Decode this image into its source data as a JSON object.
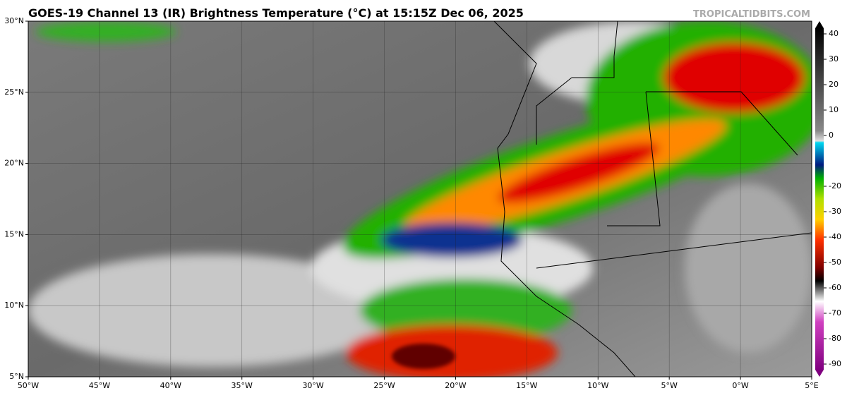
{
  "title": "GOES-19 Channel 13 (IR) Brightness Temperature (°C) at 15:15Z Dec 06, 2025",
  "watermark": "TROPICALTIDBITS.COM",
  "map": {
    "type": "map",
    "xlim": [
      -50,
      5
    ],
    "ylim": [
      5,
      30
    ],
    "xticks": [
      {
        "value": -50,
        "label": "50°W"
      },
      {
        "value": -45,
        "label": "45°W"
      },
      {
        "value": -40,
        "label": "40°W"
      },
      {
        "value": -35,
        "label": "35°W"
      },
      {
        "value": -30,
        "label": "30°W"
      },
      {
        "value": -25,
        "label": "25°W"
      },
      {
        "value": -20,
        "label": "20°W"
      },
      {
        "value": -15,
        "label": "15°W"
      },
      {
        "value": -10,
        "label": "10°W"
      },
      {
        "value": -5,
        "label": "5°W"
      },
      {
        "value": 0,
        "label": "0°W"
      },
      {
        "value": 5,
        "label": "5°E"
      }
    ],
    "yticks": [
      {
        "value": 30,
        "label": "30°N"
      },
      {
        "value": 25,
        "label": "25°N"
      },
      {
        "value": 20,
        "label": "20°N"
      },
      {
        "value": 15,
        "label": "15°N"
      },
      {
        "value": 10,
        "label": "10°N"
      },
      {
        "value": 5,
        "label": "5°N"
      }
    ],
    "grid": true
  },
  "colorbar": {
    "lim": [
      -95,
      45
    ],
    "ticks": [
      40,
      30,
      20,
      10,
      0,
      -20,
      -30,
      -40,
      -50,
      -60,
      -70,
      -80,
      -90
    ]
  }
}
